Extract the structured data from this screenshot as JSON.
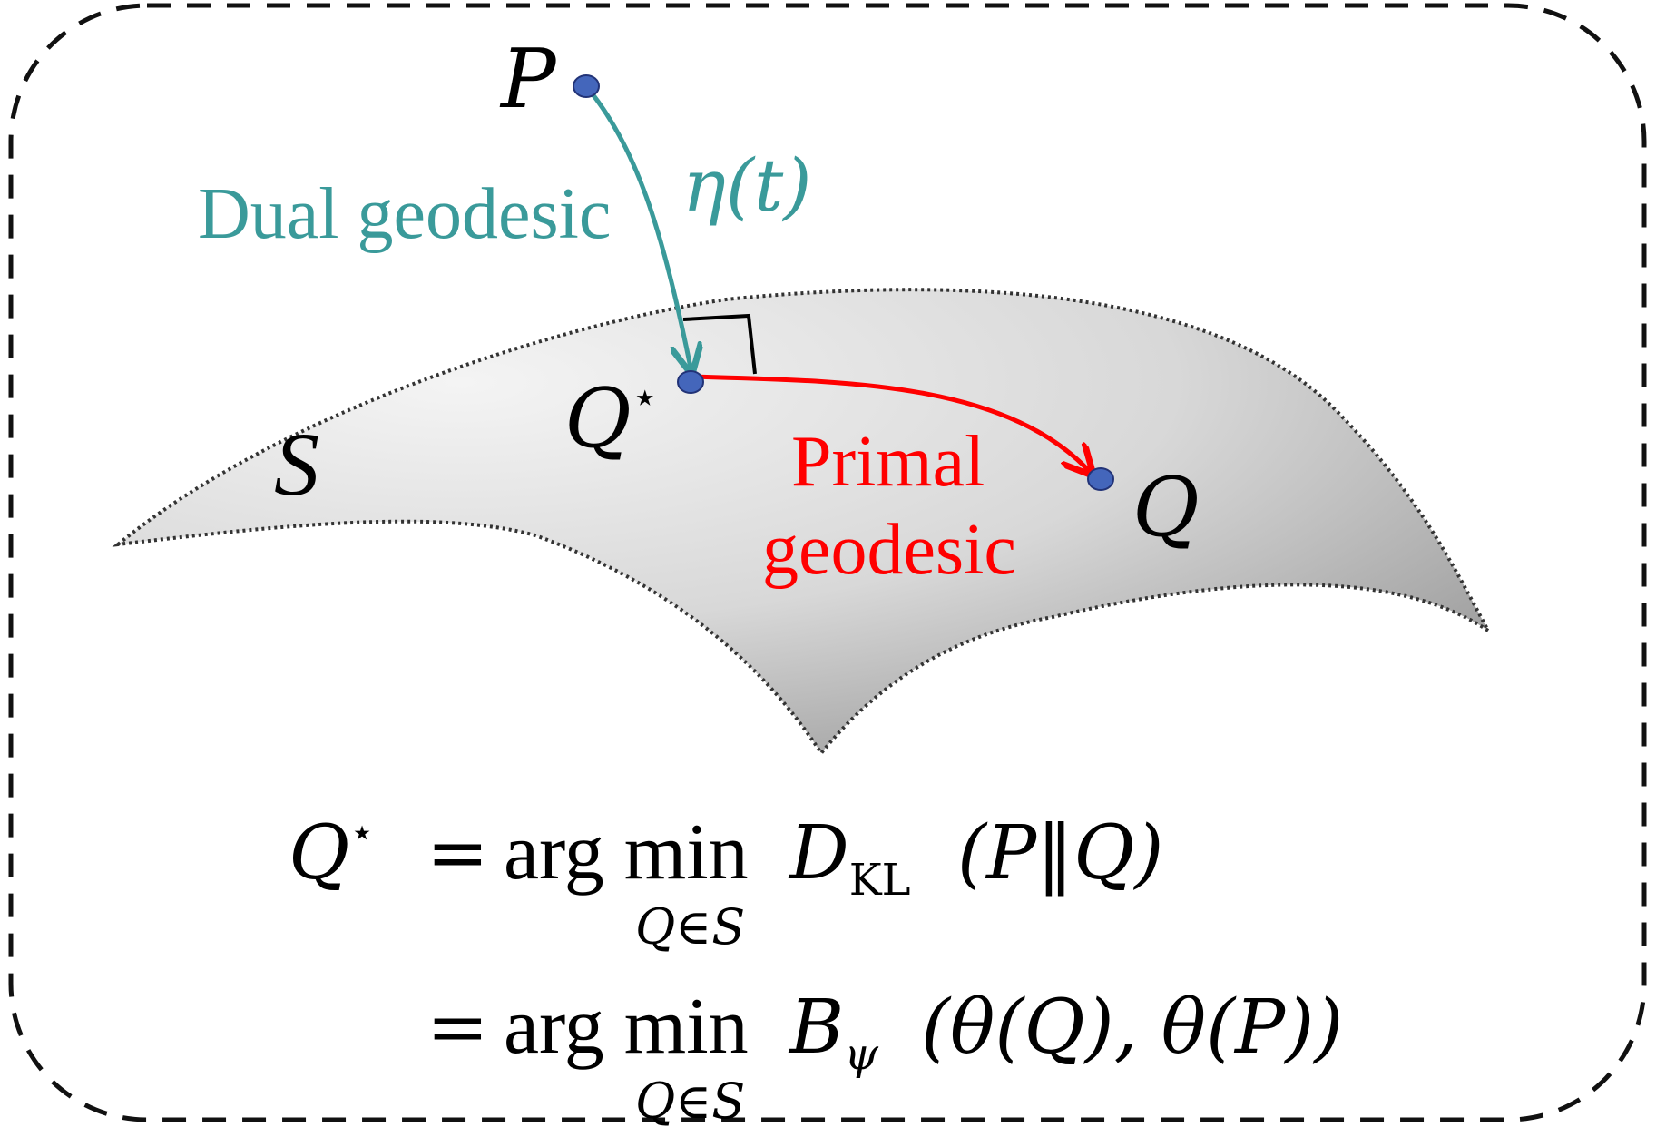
{
  "points": {
    "P": "P",
    "Q_star_base": "Q",
    "star": "⋆",
    "Q": "Q"
  },
  "manifold": {
    "label": "S"
  },
  "dual_geodesic": {
    "label": "Dual geodesic",
    "param": "η(t)",
    "color": "#3a9a9a"
  },
  "primal_geodesic": {
    "label_line1": "Primal",
    "label_line2": "geodesic",
    "color": "#ff0000"
  },
  "point_color": "#4466bb",
  "equation": {
    "line1": {
      "lhs_base": "Q",
      "lhs_star": "⋆",
      "eq": "=",
      "argmin": "arg min",
      "sub": "Q∈S",
      "D": "D",
      "D_sub": "KL",
      "args": "(P‖Q)"
    },
    "line2": {
      "eq": "=",
      "argmin": "arg min",
      "sub": "Q∈S",
      "B": "B",
      "B_sub": "ψ",
      "args": "(θ(Q), θ(P))"
    }
  }
}
